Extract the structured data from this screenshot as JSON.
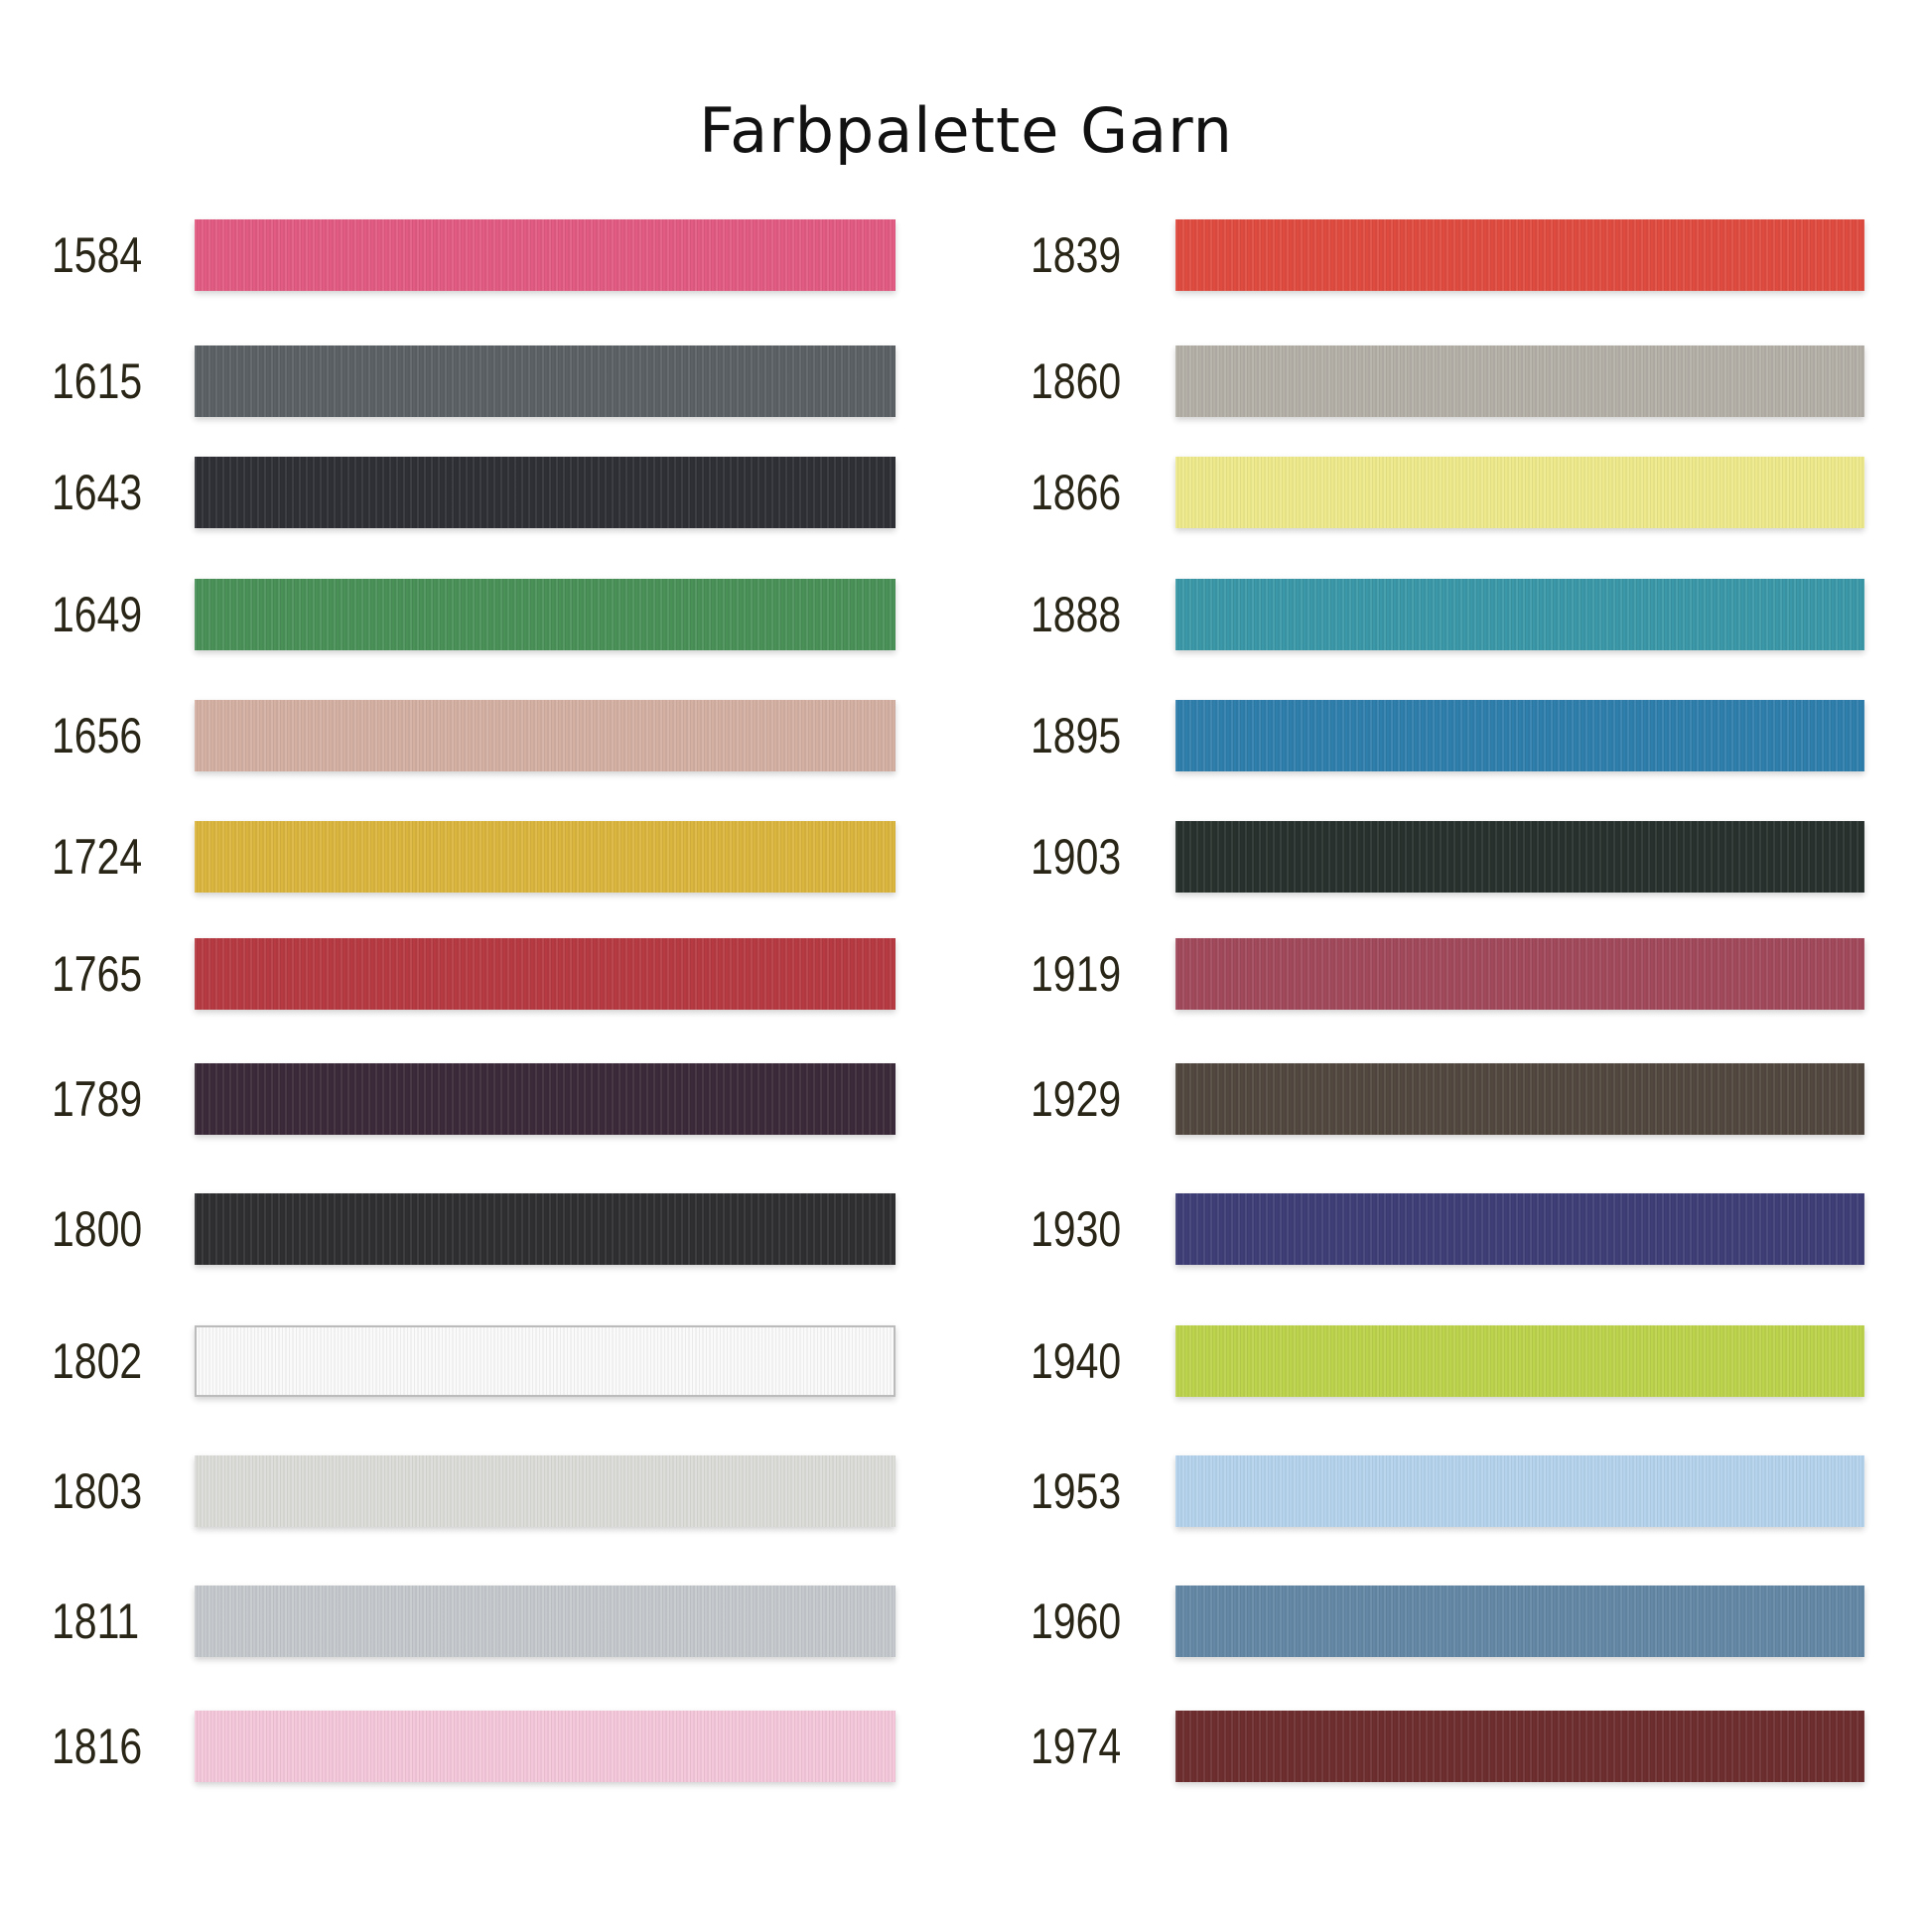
{
  "title": "Farbpalette Garn",
  "left_column": [
    {
      "code": "1584",
      "color": "#e25b82"
    },
    {
      "code": "1615",
      "color": "#5b6165"
    },
    {
      "code": "1643",
      "color": "#2e3036"
    },
    {
      "code": "1649",
      "color": "#4a9158"
    },
    {
      "code": "1656",
      "color": "#d4b0a3"
    },
    {
      "code": "1724",
      "color": "#dbb63f"
    },
    {
      "code": "1765",
      "color": "#b73a42"
    },
    {
      "code": "1789",
      "color": "#3b2a39"
    },
    {
      "code": "1800",
      "color": "#2f2f31"
    },
    {
      "code": "1802",
      "color": "#fafafa"
    },
    {
      "code": "1803",
      "color": "#dcdcd9"
    },
    {
      "code": "1811",
      "color": "#c5c9cd"
    },
    {
      "code": "1816",
      "color": "#f4c8da"
    }
  ],
  "right_column": [
    {
      "code": "1839",
      "color": "#e04b40"
    },
    {
      "code": "1860",
      "color": "#b4b0a8"
    },
    {
      "code": "1866",
      "color": "#eeea8c"
    },
    {
      "code": "1888",
      "color": "#3a98a8"
    },
    {
      "code": "1895",
      "color": "#2f7fad"
    },
    {
      "code": "1903",
      "color": "#28312d"
    },
    {
      "code": "1919",
      "color": "#a24a5c"
    },
    {
      "code": "1929",
      "color": "#524840"
    },
    {
      "code": "1930",
      "color": "#3f3e77"
    },
    {
      "code": "1940",
      "color": "#bcd34c"
    },
    {
      "code": "1953",
      "color": "#b5d3ed"
    },
    {
      "code": "1960",
      "color": "#6488a6"
    },
    {
      "code": "1974",
      "color": "#6e2e2f"
    }
  ]
}
